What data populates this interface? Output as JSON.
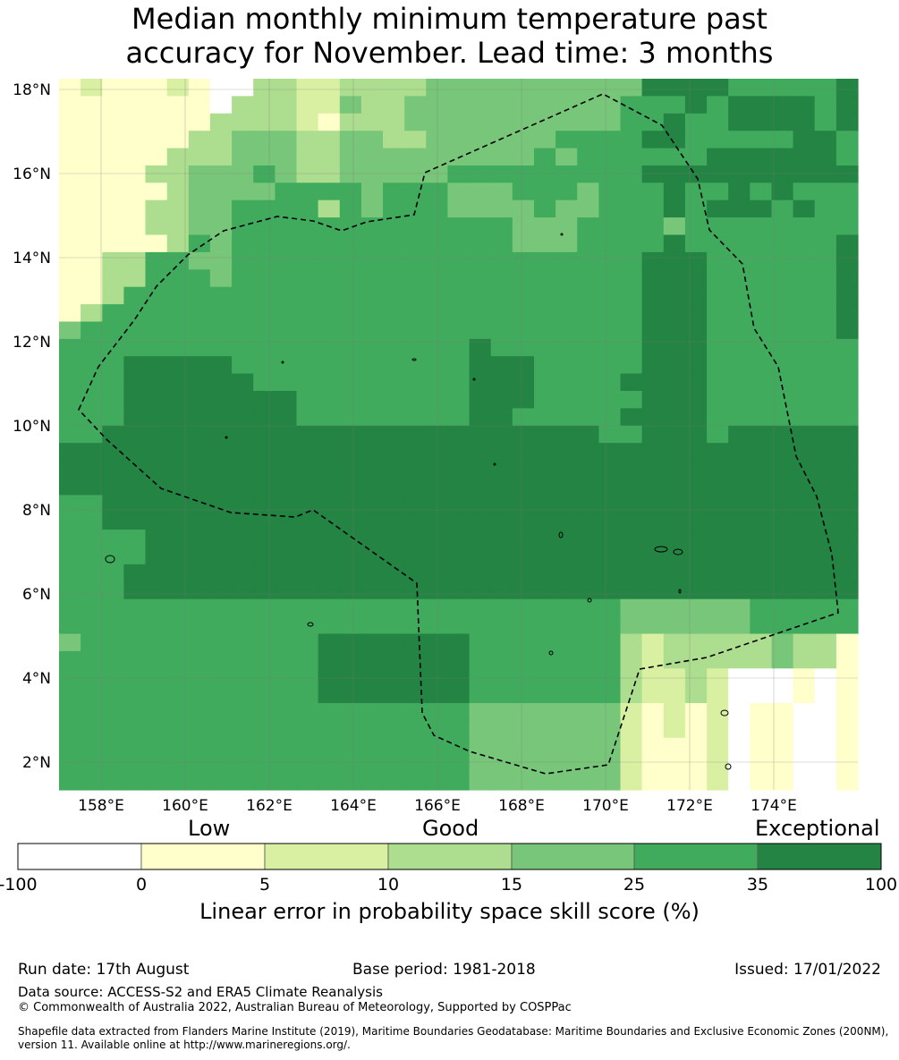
{
  "title_line1": "Median monthly minimum temperature past",
  "title_line2": "accuracy for November. Lead time: 3 months",
  "map": {
    "lat_labels": [
      "18°N",
      "16°N",
      "14°N",
      "12°N",
      "10°N",
      "8°N",
      "6°N",
      "4°N",
      "2°N"
    ],
    "lat_values": [
      18,
      16,
      14,
      12,
      10,
      8,
      6,
      4,
      2
    ],
    "lon_labels": [
      "158°E",
      "160°E",
      "162°E",
      "164°E",
      "166°E",
      "168°E",
      "170°E",
      "172°E",
      "174°E"
    ],
    "lon_values": [
      158,
      160,
      162,
      164,
      166,
      168,
      170,
      172,
      174
    ],
    "extent": {
      "lon_min": 157,
      "lon_max": 176,
      "lat_min": 1.4,
      "lat_max": 18.4
    },
    "boundary_color": "#000000"
  },
  "colorbar": {
    "category_labels": [
      "Low",
      "Good",
      "Exceptional"
    ],
    "tick_labels": [
      "-100",
      "0",
      "5",
      "10",
      "15",
      "25",
      "35",
      "100"
    ],
    "colors": [
      "#ffffff",
      "#ffffcc",
      "#d9f0a3",
      "#addd8e",
      "#78c679",
      "#41ab5d",
      "#238443"
    ],
    "xlabel": "Linear error in probability space skill score (%)"
  },
  "footer": {
    "run_date": "Run date: 17th August",
    "base_period": "Base period: 1981-2018",
    "issued": "Issued: 17/01/2022",
    "data_source": "Data source: ACCESS-S2 and ERA5 Climate Reanalysis",
    "copyright": "© Commonwealth of Australia 2022, Australian Bureau of Meteorology, Supported by COSPPac",
    "shapefile": "Shapefile data extracted from Flanders Marine Institute (2019), Maritime Boundaries Geodatabase: Maritime Boundaries and Exclusive Economic Zones (200NM), version 11. Available online at http://www.marineregions.org/."
  }
}
